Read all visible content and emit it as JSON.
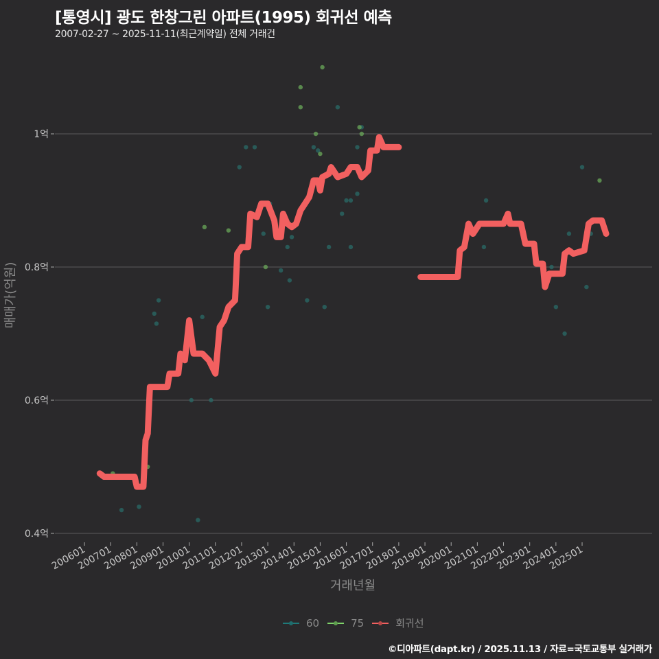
{
  "header": {
    "title": "[통영시] 광도 한창그린 아파트(1995) 회귀선 예측",
    "subtitle": "2007-02-27 ~ 2025-11-11(최근계약일) 전체 거래건"
  },
  "axes": {
    "xlabel": "거래년월",
    "ylabel": "매매가(억원)",
    "yticks": [
      "1억",
      "0.8억",
      "0.6억",
      "0.4억"
    ],
    "xticks": [
      "200601",
      "200701",
      "200801",
      "200901",
      "201001",
      "201101",
      "201201",
      "201301",
      "201401",
      "201501",
      "201601",
      "201701",
      "201801",
      "201901",
      "202001",
      "202101",
      "202201",
      "202301",
      "202401",
      "202501"
    ]
  },
  "legend": {
    "items": [
      {
        "label": "60",
        "color": "#1f7a7a"
      },
      {
        "label": "75",
        "color": "#7fd46a"
      },
      {
        "label": "회귀선",
        "color": "#f26060"
      }
    ]
  },
  "caption": "©디아파트(dapt.kr) / 2025.11.13 / 자료=국토교통부 실거래가",
  "colors": {
    "background": "#2a292b",
    "grid": "#5a5a5a",
    "series_60": "#2a6b68",
    "series_75": "#6aa85a",
    "regression": "#f26060"
  },
  "chart_data": {
    "type": "scatter",
    "title": "[통영시] 광도 한창그린 아파트(1995) 회귀선 예측",
    "subtitle": "2007-02-27 ~ 2025-11-11(최근계약일) 전체 거래건",
    "xlabel": "거래년월",
    "ylabel": "매매가(억원)",
    "ylim": [
      0.39,
      1.1
    ],
    "y_unit": "억원",
    "grid": true,
    "legend_position": "bottom",
    "series": [
      {
        "name": "60",
        "type": "scatter",
        "points": [
          {
            "x": "2007-06",
            "y": 0.435
          },
          {
            "x": "2008-02",
            "y": 0.44
          },
          {
            "x": "2008-07",
            "y": 0.59
          },
          {
            "x": "2008-09",
            "y": 0.73
          },
          {
            "x": "2008-10",
            "y": 0.715
          },
          {
            "x": "2008-11",
            "y": 0.75
          },
          {
            "x": "2010-02",
            "y": 0.6
          },
          {
            "x": "2010-05",
            "y": 0.42
          },
          {
            "x": "2010-07",
            "y": 0.725
          },
          {
            "x": "2010-11",
            "y": 0.6
          },
          {
            "x": "2011-12",
            "y": 0.95
          },
          {
            "x": "2012-03",
            "y": 0.98
          },
          {
            "x": "2012-07",
            "y": 0.98
          },
          {
            "x": "2012-11",
            "y": 0.85
          },
          {
            "x": "2013-01",
            "y": 0.74
          },
          {
            "x": "2013-02",
            "y": 0.895
          },
          {
            "x": "2013-07",
            "y": 0.795
          },
          {
            "x": "2013-10",
            "y": 0.83
          },
          {
            "x": "2013-11",
            "y": 0.78
          },
          {
            "x": "2013-12",
            "y": 0.845
          },
          {
            "x": "2014-07",
            "y": 0.75
          },
          {
            "x": "2014-10",
            "y": 0.98
          },
          {
            "x": "2014-12",
            "y": 0.975
          },
          {
            "x": "2015-03",
            "y": 0.74
          },
          {
            "x": "2015-05",
            "y": 0.83
          },
          {
            "x": "2015-09",
            "y": 1.04
          },
          {
            "x": "2015-11",
            "y": 0.88
          },
          {
            "x": "2016-01",
            "y": 0.9
          },
          {
            "x": "2016-03",
            "y": 0.9
          },
          {
            "x": "2016-03",
            "y": 0.83
          },
          {
            "x": "2016-06",
            "y": 0.91
          },
          {
            "x": "2016-06",
            "y": 0.98
          },
          {
            "x": "2016-08",
            "y": 1.01
          },
          {
            "x": "2021-05",
            "y": 0.9
          },
          {
            "x": "2021-04",
            "y": 0.83
          },
          {
            "x": "2023-11",
            "y": 0.8
          },
          {
            "x": "2024-01",
            "y": 0.74
          },
          {
            "x": "2024-05",
            "y": 0.7
          },
          {
            "x": "2024-07",
            "y": 0.85
          },
          {
            "x": "2025-01",
            "y": 0.95
          },
          {
            "x": "2025-03",
            "y": 0.77
          },
          {
            "x": "2025-05",
            "y": 0.85
          }
        ]
      },
      {
        "name": "75",
        "type": "scatter",
        "points": [
          {
            "x": "2007-02",
            "y": 0.49
          },
          {
            "x": "2008-06",
            "y": 0.5
          },
          {
            "x": "2010-08",
            "y": 0.86
          },
          {
            "x": "2011-07",
            "y": 0.855
          },
          {
            "x": "2012-12",
            "y": 0.8
          },
          {
            "x": "2014-04",
            "y": 1.07
          },
          {
            "x": "2014-04",
            "y": 1.04
          },
          {
            "x": "2014-11",
            "y": 1.0
          },
          {
            "x": "2015-01",
            "y": 0.97
          },
          {
            "x": "2015-02",
            "y": 1.1
          },
          {
            "x": "2016-08",
            "y": 1.0
          },
          {
            "x": "2016-07",
            "y": 1.01
          },
          {
            "x": "2025-09",
            "y": 0.93
          }
        ]
      },
      {
        "name": "회귀선",
        "type": "line",
        "points": [
          {
            "x": "2006-08",
            "y": 0.49
          },
          {
            "x": "2006-10",
            "y": 0.485
          },
          {
            "x": "2007-12",
            "y": 0.485
          },
          {
            "x": "2008-01",
            "y": 0.47
          },
          {
            "x": "2008-04",
            "y": 0.47
          },
          {
            "x": "2008-05",
            "y": 0.54
          },
          {
            "x": "2008-06",
            "y": 0.55
          },
          {
            "x": "2008-07",
            "y": 0.62
          },
          {
            "x": "2009-03",
            "y": 0.62
          },
          {
            "x": "2009-04",
            "y": 0.64
          },
          {
            "x": "2009-08",
            "y": 0.64
          },
          {
            "x": "2009-09",
            "y": 0.67
          },
          {
            "x": "2009-11",
            "y": 0.66
          },
          {
            "x": "2010-01",
            "y": 0.72
          },
          {
            "x": "2010-03",
            "y": 0.67
          },
          {
            "x": "2010-07",
            "y": 0.67
          },
          {
            "x": "2010-10",
            "y": 0.66
          },
          {
            "x": "2011-01",
            "y": 0.64
          },
          {
            "x": "2011-03",
            "y": 0.71
          },
          {
            "x": "2011-05",
            "y": 0.72
          },
          {
            "x": "2011-07",
            "y": 0.74
          },
          {
            "x": "2011-10",
            "y": 0.75
          },
          {
            "x": "2011-11",
            "y": 0.82
          },
          {
            "x": "2012-01",
            "y": 0.83
          },
          {
            "x": "2012-04",
            "y": 0.83
          },
          {
            "x": "2012-05",
            "y": 0.88
          },
          {
            "x": "2012-08",
            "y": 0.875
          },
          {
            "x": "2012-10",
            "y": 0.895
          },
          {
            "x": "2013-01",
            "y": 0.895
          },
          {
            "x": "2013-04",
            "y": 0.87
          },
          {
            "x": "2013-05",
            "y": 0.845
          },
          {
            "x": "2013-07",
            "y": 0.845
          },
          {
            "x": "2013-08",
            "y": 0.88
          },
          {
            "x": "2013-10",
            "y": 0.865
          },
          {
            "x": "2013-12",
            "y": 0.86
          },
          {
            "x": "2014-02",
            "y": 0.865
          },
          {
            "x": "2014-04",
            "y": 0.885
          },
          {
            "x": "2014-06",
            "y": 0.895
          },
          {
            "x": "2014-08",
            "y": 0.905
          },
          {
            "x": "2014-10",
            "y": 0.93
          },
          {
            "x": "2014-12",
            "y": 0.93
          },
          {
            "x": "2015-01",
            "y": 0.915
          },
          {
            "x": "2015-02",
            "y": 0.935
          },
          {
            "x": "2015-05",
            "y": 0.94
          },
          {
            "x": "2015-06",
            "y": 0.95
          },
          {
            "x": "2015-09",
            "y": 0.935
          },
          {
            "x": "2016-01",
            "y": 0.94
          },
          {
            "x": "2016-03",
            "y": 0.95
          },
          {
            "x": "2016-06",
            "y": 0.95
          },
          {
            "x": "2016-08",
            "y": 0.935
          },
          {
            "x": "2016-11",
            "y": 0.945
          },
          {
            "x": "2016-12",
            "y": 0.975
          },
          {
            "x": "2017-03",
            "y": 0.975
          },
          {
            "x": "2017-04",
            "y": 0.995
          },
          {
            "x": "2017-06",
            "y": 0.98
          },
          {
            "x": "2018-01",
            "y": 0.98
          },
          {
            "x": "2018-11",
            "y": 0.785
          },
          {
            "x": "2020-04",
            "y": 0.785
          },
          {
            "x": "2020-05",
            "y": 0.825
          },
          {
            "x": "2020-07",
            "y": 0.83
          },
          {
            "x": "2020-09",
            "y": 0.865
          },
          {
            "x": "2020-11",
            "y": 0.85
          },
          {
            "x": "2021-02",
            "y": 0.865
          },
          {
            "x": "2022-01",
            "y": 0.865
          },
          {
            "x": "2022-03",
            "y": 0.88
          },
          {
            "x": "2022-04",
            "y": 0.865
          },
          {
            "x": "2022-09",
            "y": 0.865
          },
          {
            "x": "2022-11",
            "y": 0.835
          },
          {
            "x": "2023-03",
            "y": 0.835
          },
          {
            "x": "2023-04",
            "y": 0.805
          },
          {
            "x": "2023-07",
            "y": 0.805
          },
          {
            "x": "2023-08",
            "y": 0.77
          },
          {
            "x": "2023-10",
            "y": 0.79
          },
          {
            "x": "2024-04",
            "y": 0.79
          },
          {
            "x": "2024-05",
            "y": 0.82
          },
          {
            "x": "2024-07",
            "y": 0.825
          },
          {
            "x": "2024-09",
            "y": 0.82
          },
          {
            "x": "2025-02",
            "y": 0.825
          },
          {
            "x": "2025-04",
            "y": 0.865
          },
          {
            "x": "2025-06",
            "y": 0.87
          },
          {
            "x": "2025-10",
            "y": 0.87
          },
          {
            "x": "2025-12",
            "y": 0.85
          }
        ]
      }
    ]
  }
}
